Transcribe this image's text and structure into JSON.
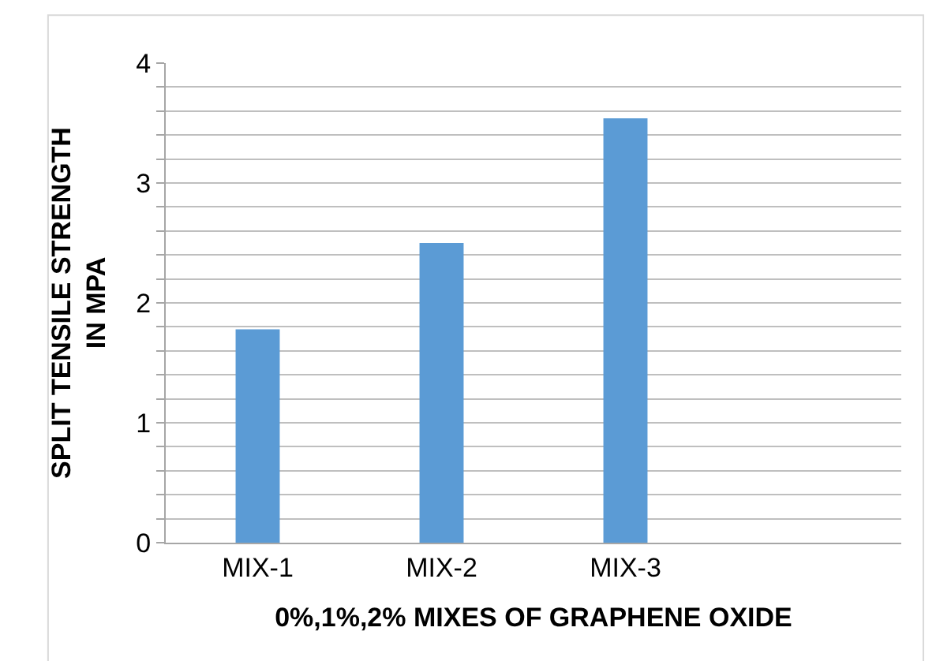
{
  "chart_data": {
    "type": "bar",
    "ylabel": "SPLIT TENSILE STRENGTH IN MPA",
    "xlabel": "0%,1%,2% MIXES OF GRAPHENE OXIDE",
    "categories": [
      "MIX-1",
      "MIX-2",
      "MIX-3",
      null
    ],
    "values": [
      1.78,
      2.5,
      3.54,
      null
    ],
    "color": "#5b9bd5",
    "ylim": [
      0,
      4
    ],
    "yticks": [
      0,
      {
        "value": 0.2,
        "label": null
      },
      {
        "value": 0.4,
        "label": null
      },
      {
        "value": 0.6,
        "label": null
      },
      {
        "value": 0.8,
        "label": null
      },
      1,
      {
        "value": 1.2,
        "label": null
      },
      {
        "value": 1.4,
        "label": null
      },
      {
        "value": 1.6,
        "label": null
      },
      {
        "value": 1.8,
        "label": null
      },
      2,
      {
        "value": 2.2,
        "label": null
      },
      {
        "value": 2.4,
        "label": null
      },
      {
        "value": 2.6,
        "label": null
      },
      {
        "value": 2.8,
        "label": null
      },
      3,
      {
        "value": 3.2,
        "label": null
      },
      {
        "value": 3.4,
        "label": null
      },
      {
        "value": 3.6,
        "label": null
      },
      {
        "value": 3.8,
        "label": null
      },
      4
    ],
    "grid": "y",
    "legend": false
  }
}
